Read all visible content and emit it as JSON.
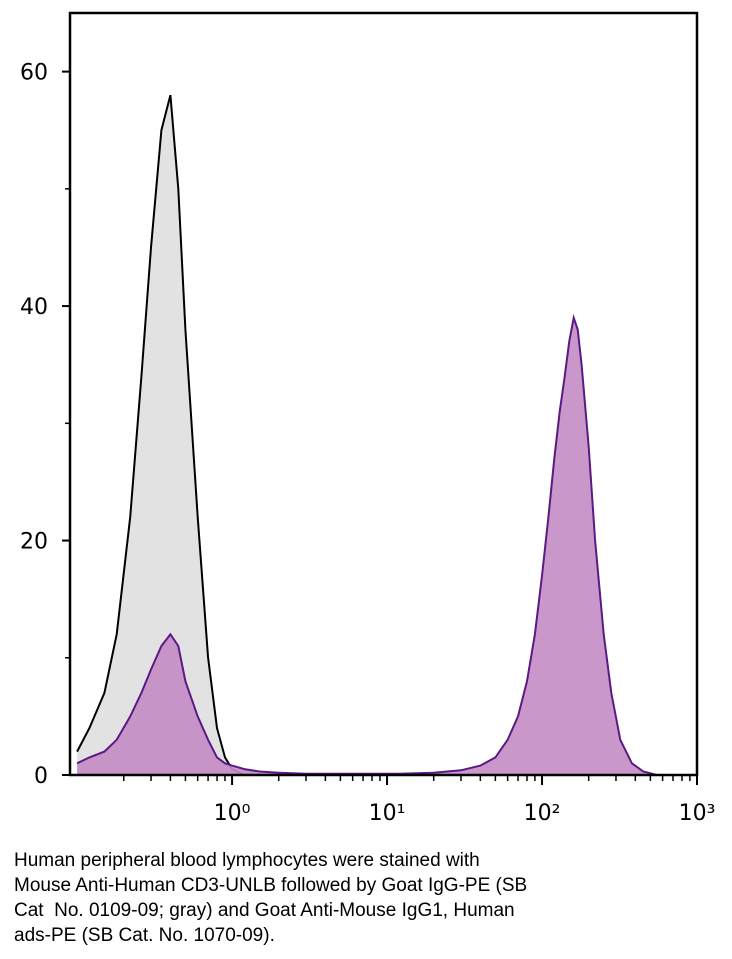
{
  "chart_data": {
    "type": "area",
    "x": [
      0.1,
      0.12,
      0.15,
      0.18,
      0.22,
      0.26,
      0.3,
      0.35,
      0.4,
      0.45,
      0.5,
      0.6,
      0.7,
      0.8,
      0.9,
      1,
      1.2,
      1.5,
      2,
      3,
      5,
      8,
      12,
      20,
      30,
      40,
      50,
      60,
      70,
      80,
      90,
      100,
      110,
      120,
      130,
      140,
      150,
      160,
      170,
      180,
      200,
      220,
      250,
      280,
      320,
      380,
      450,
      550
    ],
    "series": [
      {
        "color": "#000000",
        "fill": "#e2e2e2",
        "values": [
          2,
          4,
          7,
          12,
          22,
          34,
          45,
          55,
          58,
          50,
          38,
          22,
          10,
          4,
          1.5,
          0.5,
          0,
          0,
          0,
          0,
          0,
          0,
          0,
          0,
          0,
          0,
          0,
          0,
          0,
          0,
          0,
          0,
          0,
          0,
          0,
          0,
          0,
          0,
          0,
          0,
          0,
          0,
          0,
          0,
          0,
          0,
          0,
          0
        ]
      },
      {
        "color": "#5a1a85",
        "fill": "#c48cc4",
        "values": [
          1,
          1.5,
          2,
          3,
          5,
          7,
          9,
          11,
          12,
          11,
          8,
          5,
          3,
          1.5,
          1,
          0.8,
          0.5,
          0.3,
          0.2,
          0.1,
          0.1,
          0.1,
          0.1,
          0.2,
          0.4,
          0.8,
          1.5,
          3,
          5,
          8,
          12,
          17,
          22,
          27,
          31,
          34,
          37,
          39,
          38,
          35,
          28,
          20,
          12,
          7,
          3,
          1,
          0.3,
          0
        ]
      }
    ],
    "xscale": "log",
    "xlim": [
      0.09,
      1000
    ],
    "xticks": [
      {
        "value": 1,
        "label": "10⁰"
      },
      {
        "value": 10,
        "label": "10¹"
      },
      {
        "value": 100,
        "label": "10²"
      },
      {
        "value": 1000,
        "label": "10³"
      }
    ],
    "xminorticks": [
      0.2,
      0.3,
      0.4,
      0.5,
      0.6,
      0.7,
      0.8,
      0.9,
      2,
      3,
      4,
      5,
      6,
      7,
      8,
      9,
      20,
      30,
      40,
      50,
      60,
      70,
      80,
      90,
      200,
      300,
      400,
      500,
      600,
      700,
      800,
      900
    ],
    "ylim": [
      0,
      65
    ],
    "yticks": [
      0,
      20,
      40,
      60
    ],
    "yminorticks": [
      10,
      30,
      50
    ],
    "caption": [
      "Human peripheral blood lymphocytes were stained with",
      "Mouse Anti-Human CD3-UNLB followed by Goat IgG-PE (SB",
      "Cat  No. 0109-09; gray) and Goat Anti-Mouse IgG1, Human",
      "ads-PE (SB Cat. No. 1070-09)."
    ]
  }
}
